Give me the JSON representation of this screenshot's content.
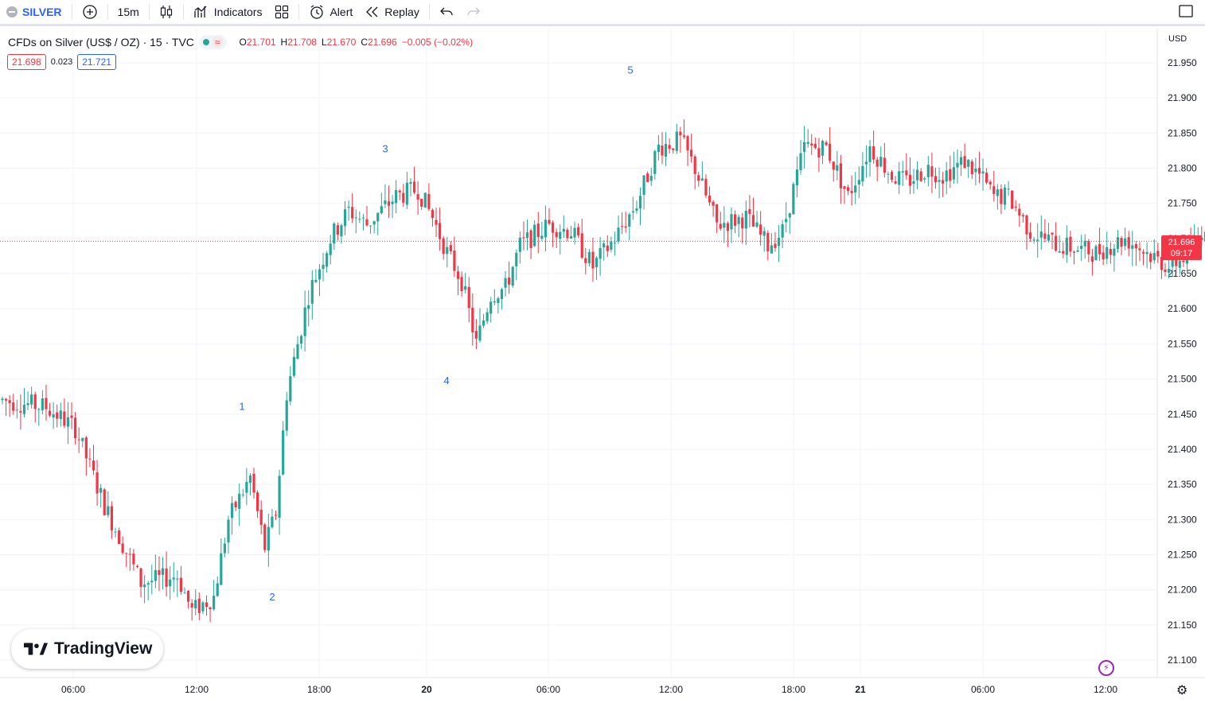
{
  "toolbar": {
    "symbol": "SILVER",
    "interval": "15m",
    "indicators_label": "Indicators",
    "alert_label": "Alert",
    "replay_label": "Replay"
  },
  "legend": {
    "title": "CFDs on Silver (US$ / OZ) · 15 · TVC",
    "wave_glyph": "≈",
    "open_key": "O",
    "open": "21.701",
    "high_key": "H",
    "high": "21.708",
    "low_key": "L",
    "low": "21.670",
    "close_key": "C",
    "close": "21.696",
    "change": "−0.005 (−0.02%)"
  },
  "quotes": {
    "sell": "21.698",
    "spread": "0.023",
    "buy": "21.721"
  },
  "price_badge": {
    "price": "21.696",
    "countdown": "09:17"
  },
  "brand": {
    "logo_text": "TradingView"
  },
  "colors": {
    "up": "#26a69a",
    "down": "#f23645",
    "accent": "#2962ff",
    "grid": "#f0f3fa"
  },
  "chart_data": {
    "type": "candlestick",
    "title": "",
    "currency_label": "USD",
    "last_price": 21.696,
    "y_range": [
      21.08,
      21.98
    ],
    "y_ticks": [
      "21.950",
      "21.900",
      "21.850",
      "21.800",
      "21.750",
      "21.700",
      "21.650",
      "21.600",
      "21.550",
      "21.500",
      "21.450",
      "21.400",
      "21.350",
      "21.300",
      "21.250",
      "21.200",
      "21.150",
      "21.100"
    ],
    "x_ticks": [
      "06:00",
      "12:00",
      "18:00",
      "20",
      "06:00",
      "12:00",
      "18:00",
      "21",
      "06:00",
      "12:00"
    ],
    "wave_labels": [
      {
        "label": "1",
        "price": 21.44
      },
      {
        "label": "2",
        "price": 21.23
      },
      {
        "label": "3",
        "price": 21.8
      },
      {
        "label": "4",
        "price": 21.52
      },
      {
        "label": "5",
        "price": 21.91
      }
    ],
    "anchors": [
      [
        0,
        21.47
      ],
      [
        12,
        21.46
      ],
      [
        20,
        21.43
      ],
      [
        28,
        21.32
      ],
      [
        38,
        21.21
      ],
      [
        48,
        21.22
      ],
      [
        52,
        21.17
      ],
      [
        58,
        21.19
      ],
      [
        62,
        21.3
      ],
      [
        68,
        21.36
      ],
      [
        72,
        21.26
      ],
      [
        75,
        21.31
      ],
      [
        78,
        21.48
      ],
      [
        84,
        21.62
      ],
      [
        90,
        21.7
      ],
      [
        95,
        21.74
      ],
      [
        100,
        21.72
      ],
      [
        108,
        21.76
      ],
      [
        114,
        21.77
      ],
      [
        118,
        21.73
      ],
      [
        122,
        21.68
      ],
      [
        126,
        21.64
      ],
      [
        130,
        21.55
      ],
      [
        134,
        21.62
      ],
      [
        138,
        21.63
      ],
      [
        142,
        21.69
      ],
      [
        150,
        21.72
      ],
      [
        156,
        21.71
      ],
      [
        162,
        21.66
      ],
      [
        168,
        21.7
      ],
      [
        174,
        21.75
      ],
      [
        180,
        21.83
      ],
      [
        186,
        21.84
      ],
      [
        190,
        21.8
      ],
      [
        196,
        21.72
      ],
      [
        204,
        21.73
      ],
      [
        210,
        21.69
      ],
      [
        214,
        21.71
      ],
      [
        220,
        21.83
      ],
      [
        226,
        21.83
      ],
      [
        232,
        21.76
      ],
      [
        238,
        21.83
      ],
      [
        244,
        21.79
      ],
      [
        248,
        21.78
      ],
      [
        254,
        21.8
      ],
      [
        258,
        21.79
      ],
      [
        264,
        21.81
      ],
      [
        268,
        21.79
      ],
      [
        272,
        21.76
      ],
      [
        276,
        21.76
      ],
      [
        282,
        21.71
      ],
      [
        290,
        21.69
      ],
      [
        300,
        21.68
      ],
      [
        308,
        21.7
      ],
      [
        314,
        21.68
      ],
      [
        320,
        21.66
      ],
      [
        326,
        21.68
      ],
      [
        330,
        21.72
      ],
      [
        334,
        21.68
      ],
      [
        338,
        21.696
      ]
    ]
  }
}
